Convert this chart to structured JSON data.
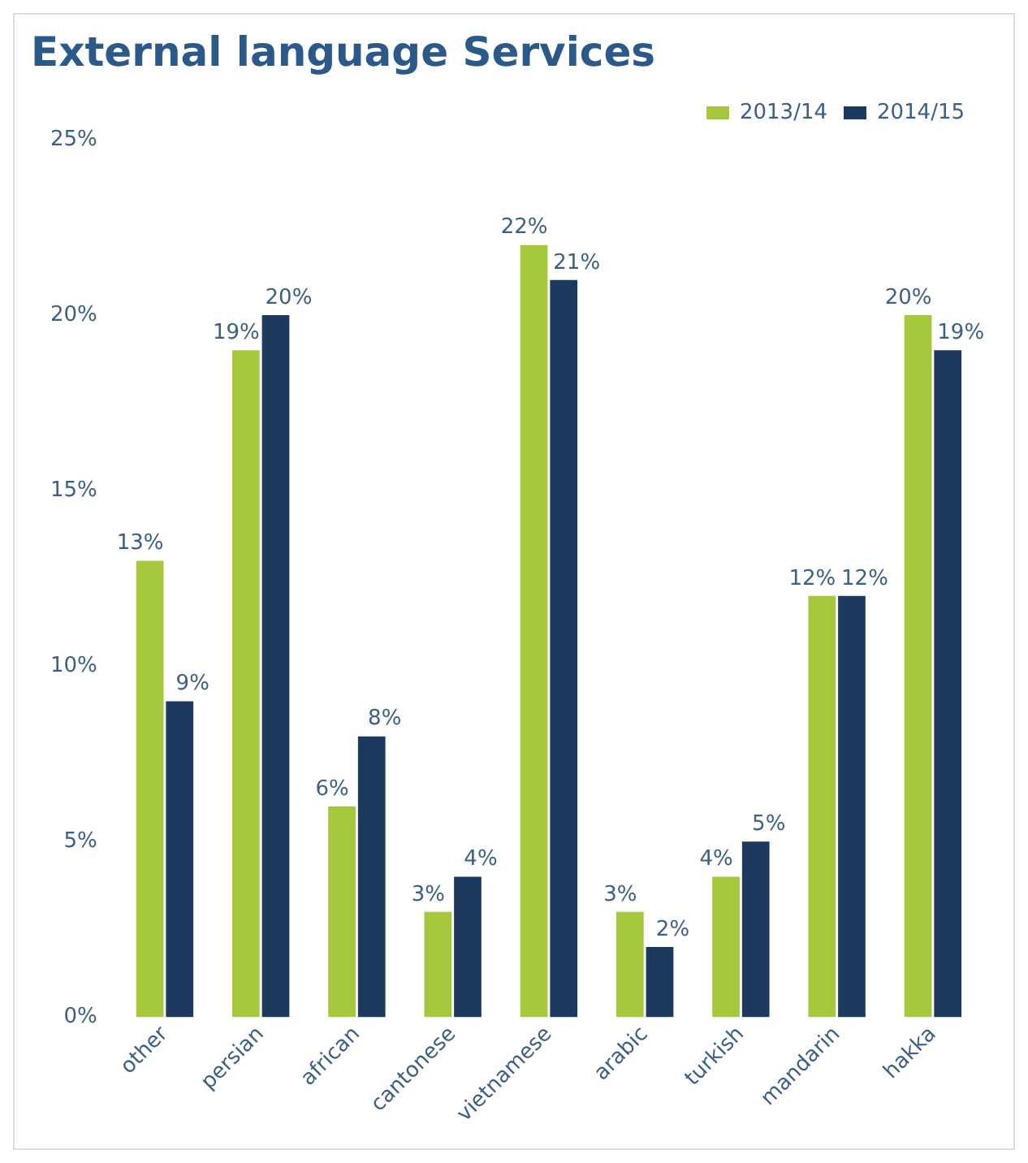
{
  "chart_data": {
    "type": "bar",
    "title": "External language Services",
    "categories": [
      "other",
      "persian",
      "african",
      "cantonese",
      "vietnamese",
      "arabic",
      "turkish",
      "mandarin",
      "hakka"
    ],
    "series": [
      {
        "name": "2013/14",
        "color": "#a6c83c",
        "values": [
          13,
          19,
          6,
          3,
          22,
          3,
          4,
          12,
          20
        ],
        "value_labels": [
          "13%",
          "19%",
          "6%",
          "3%",
          "22%",
          "3%",
          "4%",
          "12%",
          "20%"
        ]
      },
      {
        "name": "2014/15",
        "color": "#1c3a5e",
        "values": [
          9,
          20,
          8,
          4,
          21,
          2,
          5,
          12,
          19
        ],
        "value_labels": [
          "9%",
          "20%",
          "8%",
          "4%",
          "21%",
          "2%",
          "5%",
          "12%",
          "19%"
        ]
      }
    ],
    "ylim": [
      0,
      25
    ],
    "yticks": [
      {
        "value": 0,
        "label": "0%"
      },
      {
        "value": 5,
        "label": "5%"
      },
      {
        "value": 10,
        "label": "10%"
      },
      {
        "value": 15,
        "label": "15%"
      },
      {
        "value": 20,
        "label": "20%"
      },
      {
        "value": 25,
        "label": "25%"
      }
    ],
    "grid": false,
    "legend": "top right"
  }
}
